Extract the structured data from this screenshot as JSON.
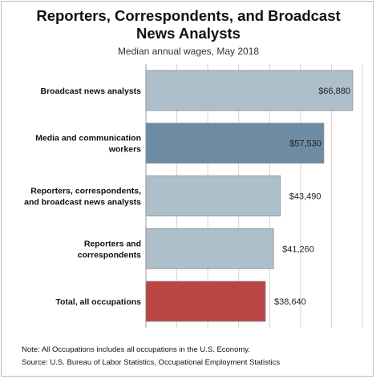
{
  "title": "Reporters, Correspondents, and Broadcast News Analysts",
  "subtitle": "Median annual wages, May 2018",
  "chart_data": {
    "type": "bar",
    "orientation": "horizontal",
    "title": "Reporters, Correspondents, and Broadcast News Analysts",
    "subtitle": "Median annual wages, May 2018",
    "xlabel": "",
    "ylabel": "",
    "xlim": [
      0,
      70000
    ],
    "grid": true,
    "categories": [
      [
        "Broadcast news analysts"
      ],
      [
        "Media and communication",
        "workers"
      ],
      [
        "Reporters, correspondents,",
        "and broadcast news analysts"
      ],
      [
        "Reporters and",
        "correspondents"
      ],
      [
        "Total, all occupations"
      ]
    ],
    "values": [
      66880,
      57530,
      43490,
      41260,
      38640
    ],
    "value_labels": [
      "$66,880",
      "$57,530",
      "$43,490",
      "$41,260",
      "$38,640"
    ],
    "colors": [
      "#adbfcb",
      "#6d8ba3",
      "#adbfcb",
      "#adbfcb",
      "#b94545"
    ]
  },
  "notes": {
    "note": "Note: All Occupations includes all occupations in the U.S. Economy.",
    "source": "Source: U.S. Bureau of Labor Statistics, Occupational Employment Statistics"
  }
}
